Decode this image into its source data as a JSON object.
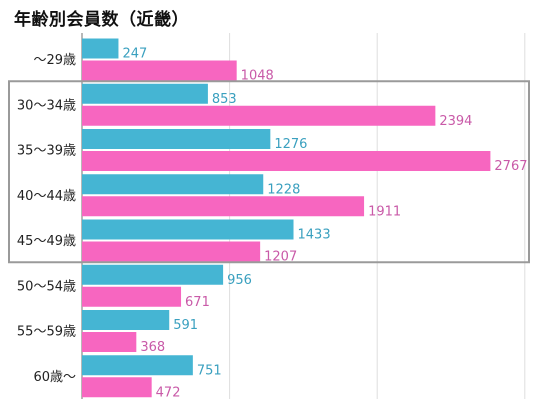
{
  "chart_data": {
    "type": "bar",
    "orientation": "horizontal",
    "title": "年齢別会員数（近畿）",
    "categories": [
      "～29歳",
      "30～34歳",
      "35～39歳",
      "40～44歳",
      "45～49歳",
      "50～54歳",
      "55～59歳",
      "60歳～"
    ],
    "series": [
      {
        "values": [
          247,
          853,
          1276,
          1228,
          1433,
          956,
          591,
          751
        ],
        "color": "#45b5d3",
        "label_color": "#3aa0bf"
      },
      {
        "values": [
          1048,
          2394,
          2767,
          1911,
          1207,
          671,
          368,
          472
        ],
        "color": "#f766c0",
        "label_color": "#c95aa8"
      }
    ],
    "xlim": [
      0,
      3000
    ],
    "grid": true,
    "highlight": {
      "categories": [
        "30～34歳",
        "35～39歳",
        "40～44歳",
        "45～49歳"
      ],
      "color": "#9a9a9a"
    }
  }
}
